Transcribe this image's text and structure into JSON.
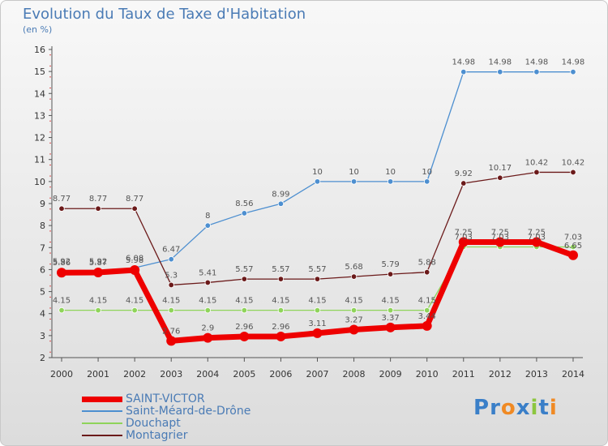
{
  "title": "Evolution du Taux de Taxe d'Habitation",
  "subtitle": "(en %)",
  "logo": {
    "text": "Proxiti",
    "letters": [
      "P",
      "r",
      "o",
      "x",
      "i",
      "t",
      "i"
    ],
    "colors": [
      "#3a7fc8",
      "#3a7fc8",
      "#f08a24",
      "#3a7fc8",
      "#8cc63f",
      "#3a7fc8",
      "#f08a24"
    ]
  },
  "legend_position": "bottom-left",
  "chart_data": {
    "type": "line",
    "title": "Evolution du Taux de Taxe d'Habitation",
    "ylabel": "(en %)",
    "xlabel": "",
    "ylim": [
      2,
      16
    ],
    "yticks": [
      2,
      3,
      4,
      5,
      6,
      7,
      8,
      9,
      10,
      11,
      12,
      13,
      14,
      15,
      16
    ],
    "grid": false,
    "categories": [
      "2000",
      "2001",
      "2002",
      "2003",
      "2004",
      "2005",
      "2006",
      "2007",
      "2008",
      "2009",
      "2010",
      "2011",
      "2012",
      "2013",
      "2014"
    ],
    "series": [
      {
        "name": "SAINT-VICTOR",
        "color": "#ee0000",
        "style": "thick",
        "values": [
          5.86,
          5.87,
          5.98,
          2.76,
          2.9,
          2.96,
          2.96,
          3.11,
          3.27,
          3.37,
          3.44,
          7.25,
          7.25,
          7.25,
          6.65
        ]
      },
      {
        "name": "Saint-Méard-de-Drône",
        "color": "#4d8fd0",
        "style": "thin",
        "values": [
          5.92,
          5.92,
          6.08,
          6.47,
          8,
          8.56,
          8.99,
          10,
          10,
          10,
          10,
          14.98,
          14.98,
          14.98,
          14.98
        ]
      },
      {
        "name": "Douchapt",
        "color": "#8fd45a",
        "style": "thin",
        "values": [
          4.15,
          4.15,
          4.15,
          4.15,
          4.15,
          4.15,
          4.15,
          4.15,
          4.15,
          4.15,
          4.15,
          7.03,
          7.03,
          7.03,
          7.03
        ]
      },
      {
        "name": "Montagrier",
        "color": "#6b1a1a",
        "style": "thin",
        "values": [
          8.77,
          8.77,
          8.77,
          5.3,
          5.41,
          5.57,
          5.57,
          5.57,
          5.68,
          5.79,
          5.88,
          9.92,
          10.17,
          10.42,
          10.42
        ]
      }
    ]
  }
}
